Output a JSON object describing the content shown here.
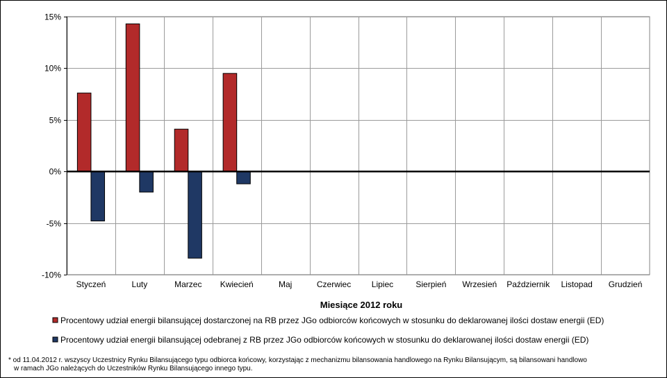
{
  "chart_data": {
    "type": "bar",
    "xlabel": "Miesiące 2012 roku",
    "ylabel": "",
    "ylim": [
      -10,
      15
    ],
    "yticks": [
      15,
      10,
      5,
      0,
      -5,
      -10
    ],
    "ytick_labels": [
      "15%",
      "10%",
      "5%",
      "0%",
      "-5%",
      "-10%"
    ],
    "categories": [
      "Styczeń",
      "Luty",
      "Marzec",
      "Kwiecień",
      "Maj",
      "Czerwiec",
      "Lipiec",
      "Sierpień",
      "Wrzesień",
      "Październik",
      "Listopad",
      "Grudzień"
    ],
    "series": [
      {
        "name": "Procentowy udział energii bilansującej dostarczonej na RB przez JGo odbiorców końcowych w stosunku do deklarowanej ilości dostaw energii (ED)",
        "color": "#b22a2a",
        "values": [
          7.6,
          14.3,
          4.1,
          9.5,
          null,
          null,
          null,
          null,
          null,
          null,
          null,
          null
        ]
      },
      {
        "name": "Procentowy udział energii bilansującej odebranej z RB przez JGo odbiorców końcowych w stosunku do deklarowanej ilości dostaw energii (ED)",
        "color": "#1f3864",
        "values": [
          -4.8,
          -2.0,
          -8.4,
          -1.2,
          null,
          null,
          null,
          null,
          null,
          null,
          null,
          null
        ]
      }
    ],
    "grid": true,
    "legend_position": "bottom"
  },
  "footnote": {
    "line1": "* od 11.04.2012 r. wszyscy Uczestnicy Rynku Bilansującego typu odbiorca końcowy, korzystając z mechanizmu bilansowania handlowego na Rynku Bilansującym, są bilansowani handlowo",
    "line2": "w ramach JGo należących do Uczestników Rynku Bilansującego innego typu."
  }
}
